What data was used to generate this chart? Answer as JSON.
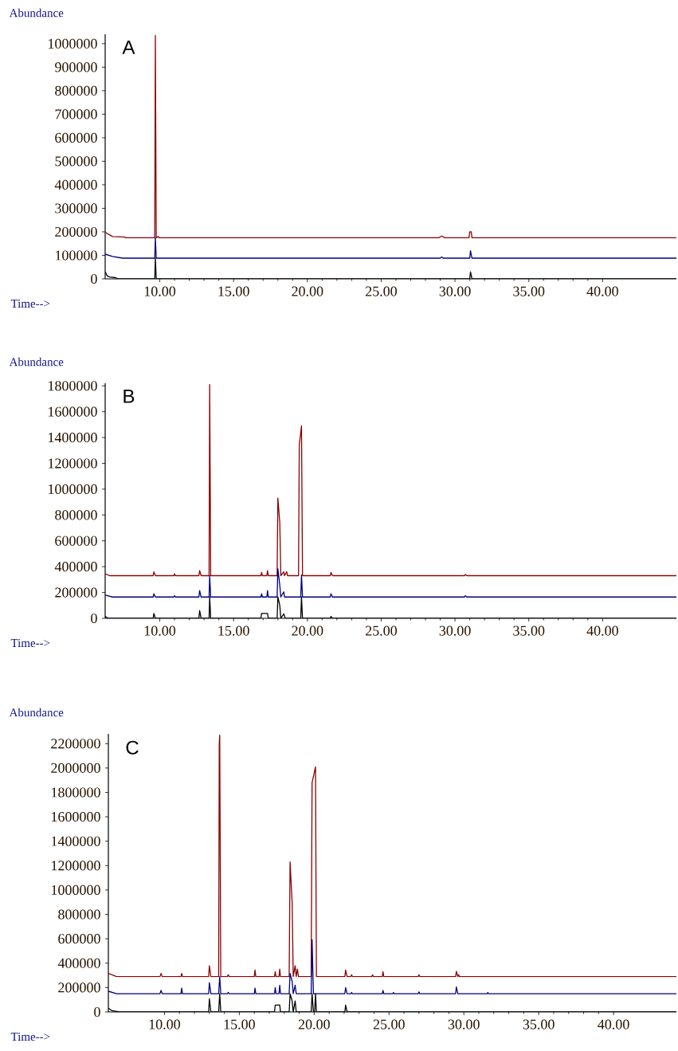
{
  "chart_data": [
    {
      "type": "line",
      "annotations": [
        "A"
      ],
      "xlabel": "Time-->",
      "ylabel": "Abundance",
      "xlim": [
        6.3,
        45
      ],
      "ylim": [
        0,
        1040000
      ],
      "xticks": [
        {
          "value": 10,
          "label": "10.00"
        },
        {
          "value": 15,
          "label": "15.00"
        },
        {
          "value": 20,
          "label": "20.00"
        },
        {
          "value": 25,
          "label": "25.00"
        },
        {
          "value": 30,
          "label": "30.00"
        },
        {
          "value": 35,
          "label": "35.00"
        },
        {
          "value": 40,
          "label": "40.00"
        }
      ],
      "yticks": [
        0,
        100000,
        200000,
        300000,
        400000,
        500000,
        600000,
        700000,
        800000,
        900000,
        1000000
      ],
      "series": [
        {
          "color": "#8b0000",
          "x": [
            6.3,
            6.8,
            7.6,
            7.7,
            9.66,
            9.7,
            9.76,
            9.9,
            9.95,
            28.9,
            29.1,
            29.3,
            30.95,
            31.0,
            31.1,
            31.15,
            45
          ],
          "values": [
            198000,
            180000,
            178000,
            175000,
            175000,
            1035000,
            175000,
            180000,
            175000,
            175000,
            182000,
            175000,
            175000,
            200000,
            200000,
            175000,
            175000
          ]
        },
        {
          "color": "#000080",
          "x": [
            6.3,
            6.8,
            7.5,
            9.66,
            9.7,
            9.76,
            29.0,
            29.1,
            29.2,
            31.0,
            31.05,
            31.15,
            45
          ],
          "values": [
            105000,
            95000,
            88000,
            88000,
            175000,
            88000,
            88000,
            93000,
            88000,
            88000,
            120000,
            88000,
            88000
          ]
        },
        {
          "color": "#000000",
          "x": [
            6.3,
            6.45,
            6.6,
            7.0,
            7.2,
            9.66,
            9.7,
            9.76,
            31.0,
            31.05,
            31.15,
            45
          ],
          "values": [
            30000,
            12000,
            8000,
            5000,
            0,
            0,
            88000,
            0,
            0,
            30000,
            0,
            0
          ]
        }
      ]
    },
    {
      "type": "line",
      "annotations": [
        "B"
      ],
      "xlabel": "Time-->",
      "ylabel": "Abundance",
      "xlim": [
        6.3,
        45
      ],
      "ylim": [
        0,
        1820000
      ],
      "xticks": [
        {
          "value": 10,
          "label": "10.00"
        },
        {
          "value": 15,
          "label": "15.00"
        },
        {
          "value": 20,
          "label": "20.00"
        },
        {
          "value": 25,
          "label": "25.00"
        },
        {
          "value": 30,
          "label": "30.00"
        },
        {
          "value": 35,
          "label": "35.00"
        },
        {
          "value": 40,
          "label": "40.00"
        }
      ],
      "yticks": [
        0,
        200000,
        400000,
        600000,
        800000,
        1000000,
        1200000,
        1400000,
        1600000,
        1800000
      ],
      "series": [
        {
          "color": "#8b0000",
          "x": [
            6.3,
            6.6,
            9.55,
            9.6,
            9.7,
            10.95,
            11.0,
            11.05,
            12.65,
            12.7,
            12.8,
            13.34,
            13.38,
            13.45,
            16.85,
            16.9,
            16.95,
            17.25,
            17.3,
            17.35,
            17.95,
            18.0,
            18.13,
            18.2,
            18.4,
            18.45,
            18.6,
            18.65,
            19.4,
            19.45,
            19.6,
            19.67,
            21.55,
            21.6,
            21.7,
            30.65,
            30.7,
            30.8,
            45
          ],
          "values": [
            345000,
            330000,
            330000,
            360000,
            330000,
            330000,
            345000,
            330000,
            330000,
            370000,
            330000,
            330000,
            1810000,
            330000,
            330000,
            355000,
            330000,
            330000,
            370000,
            330000,
            330000,
            931000,
            740000,
            330000,
            360000,
            330000,
            360000,
            330000,
            330000,
            1340000,
            1490000,
            330000,
            330000,
            355000,
            330000,
            330000,
            340000,
            330000,
            330000
          ]
        },
        {
          "color": "#000080",
          "x": [
            6.3,
            6.8,
            9.55,
            9.6,
            9.7,
            10.95,
            11.0,
            11.05,
            12.65,
            12.7,
            12.8,
            13.34,
            13.38,
            13.45,
            16.85,
            16.9,
            16.95,
            17.25,
            17.3,
            17.35,
            17.95,
            18.0,
            18.13,
            18.2,
            18.4,
            18.45,
            19.55,
            19.6,
            19.67,
            21.55,
            21.6,
            21.7,
            30.65,
            30.7,
            30.8,
            45
          ],
          "values": [
            180000,
            165000,
            165000,
            190000,
            165000,
            165000,
            175000,
            165000,
            165000,
            215000,
            165000,
            165000,
            330000,
            165000,
            165000,
            190000,
            165000,
            165000,
            215000,
            165000,
            165000,
            385000,
            255000,
            165000,
            205000,
            165000,
            165000,
            335000,
            165000,
            165000,
            190000,
            165000,
            165000,
            175000,
            165000,
            165000
          ]
        },
        {
          "color": "#000000",
          "x": [
            6.3,
            6.5,
            9.55,
            9.6,
            9.7,
            12.65,
            12.7,
            12.8,
            13.34,
            13.38,
            13.45,
            16.85,
            16.9,
            17.3,
            17.35,
            17.95,
            18.0,
            18.13,
            18.2,
            18.4,
            18.5,
            19.55,
            19.6,
            19.67,
            21.55,
            21.6,
            21.7,
            45
          ],
          "values": [
            15000,
            0,
            0,
            38000,
            0,
            0,
            60000,
            0,
            0,
            165000,
            0,
            0,
            38000,
            38000,
            0,
            0,
            165000,
            100000,
            0,
            35000,
            0,
            0,
            165000,
            0,
            0,
            15000,
            0,
            0
          ]
        }
      ]
    },
    {
      "type": "line",
      "annotations": [
        "C"
      ],
      "xlabel": "Time-->",
      "ylabel": "Abundance",
      "xlim": [
        6.25,
        44.2
      ],
      "ylim": [
        0,
        2280000
      ],
      "xticks": [
        {
          "value": 10,
          "label": "10.00"
        },
        {
          "value": 15,
          "label": "15.00"
        },
        {
          "value": 20,
          "label": "20.00"
        },
        {
          "value": 25,
          "label": "25.00"
        },
        {
          "value": 30,
          "label": "30.00"
        },
        {
          "value": 35,
          "label": "35.00"
        },
        {
          "value": 40,
          "label": "40.00"
        }
      ],
      "yticks": [
        0,
        200000,
        400000,
        600000,
        800000,
        1000000,
        1200000,
        1400000,
        1600000,
        1800000,
        2000000,
        2200000
      ],
      "series": [
        {
          "color": "#8b0000",
          "x": [
            6.25,
            6.8,
            9.7,
            9.77,
            9.85,
            11.1,
            11.15,
            11.2,
            12.95,
            13.0,
            13.1,
            13.62,
            13.66,
            13.69,
            13.76,
            14.2,
            14.26,
            14.32,
            16.0,
            16.05,
            16.1,
            17.35,
            17.4,
            17.45,
            17.65,
            17.7,
            17.75,
            18.33,
            18.39,
            18.53,
            18.6,
            18.73,
            18.8,
            18.88,
            18.95,
            19.8,
            19.86,
            20.09,
            20.15,
            22.05,
            22.1,
            22.2,
            22.45,
            22.5,
            22.55,
            23.85,
            23.9,
            23.95,
            24.55,
            24.6,
            24.65,
            26.95,
            27.0,
            27.05,
            29.45,
            29.5,
            29.6,
            29.65,
            29.7,
            44.2
          ],
          "values": [
            316000,
            290000,
            290000,
            316000,
            290000,
            290000,
            316000,
            290000,
            290000,
            379000,
            290000,
            290000,
            2200000,
            2270000,
            290000,
            290000,
            305000,
            290000,
            290000,
            344000,
            290000,
            290000,
            330000,
            290000,
            290000,
            351000,
            290000,
            290000,
            1230000,
            897000,
            290000,
            379000,
            290000,
            351000,
            290000,
            290000,
            1880000,
            2010000,
            290000,
            290000,
            344000,
            290000,
            290000,
            305000,
            290000,
            290000,
            305000,
            290000,
            290000,
            330000,
            290000,
            290000,
            305000,
            290000,
            290000,
            333000,
            290000,
            305000,
            290000,
            290000
          ]
        },
        {
          "color": "#000080",
          "x": [
            6.25,
            6.8,
            9.7,
            9.77,
            9.85,
            11.1,
            11.15,
            11.2,
            12.95,
            13.0,
            13.1,
            13.62,
            13.69,
            13.76,
            14.2,
            14.26,
            14.32,
            16.0,
            16.05,
            16.1,
            17.35,
            17.4,
            17.45,
            17.65,
            17.7,
            17.75,
            18.33,
            18.39,
            18.53,
            18.6,
            18.73,
            18.8,
            19.8,
            19.86,
            19.95,
            22.05,
            22.1,
            22.2,
            22.45,
            22.5,
            22.55,
            24.55,
            24.6,
            24.65,
            25.25,
            25.3,
            25.35,
            26.95,
            27.0,
            27.05,
            29.45,
            29.5,
            29.6,
            31.55,
            31.6,
            31.65,
            44.2
          ],
          "values": [
            170000,
            150000,
            150000,
            177000,
            150000,
            150000,
            195000,
            150000,
            150000,
            240000,
            150000,
            150000,
            290000,
            150000,
            150000,
            160000,
            150000,
            150000,
            195000,
            150000,
            150000,
            200000,
            150000,
            150000,
            219000,
            150000,
            150000,
            316000,
            250000,
            150000,
            219000,
            150000,
            150000,
            594000,
            150000,
            150000,
            200000,
            150000,
            150000,
            160000,
            150000,
            150000,
            177000,
            150000,
            150000,
            160000,
            150000,
            150000,
            165000,
            150000,
            150000,
            205000,
            150000,
            150000,
            160000,
            150000,
            150000
          ]
        },
        {
          "color": "#000000",
          "x": [
            6.25,
            6.5,
            7.0,
            12.95,
            13.0,
            13.1,
            13.62,
            13.69,
            13.76,
            17.35,
            17.4,
            17.7,
            17.75,
            18.33,
            18.39,
            18.53,
            18.6,
            18.73,
            18.8,
            19.8,
            19.86,
            19.95,
            20.03,
            20.09,
            20.15,
            22.05,
            22.1,
            22.2,
            44.2
          ],
          "values": [
            31000,
            10000,
            0,
            0,
            108000,
            0,
            0,
            150000,
            0,
            0,
            56000,
            56000,
            0,
            0,
            150000,
            90000,
            0,
            90000,
            0,
            0,
            150000,
            0,
            0,
            150000,
            0,
            0,
            56000,
            0,
            0
          ]
        }
      ]
    }
  ]
}
